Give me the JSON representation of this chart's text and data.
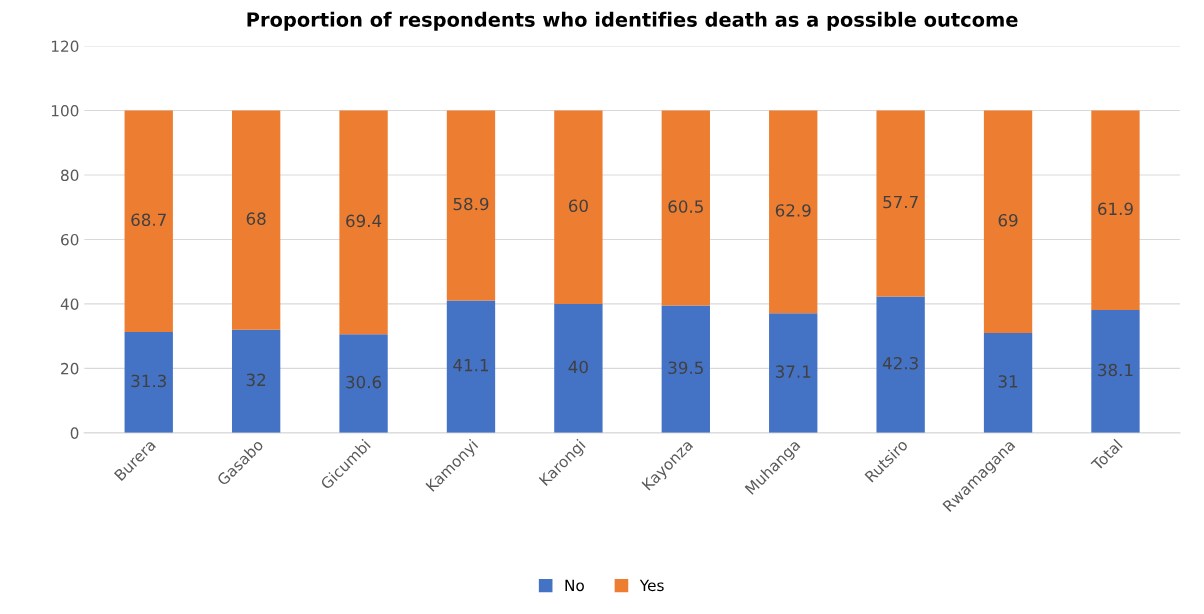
{
  "chart_data": {
    "type": "bar",
    "stacked": true,
    "title": "Proportion of respondents who identifies death as a possible outcome",
    "categories": [
      "Burera",
      "Gasabo",
      "Gicumbi",
      "Kamonyi",
      "Karongi",
      "Kayonza",
      "Muhanga",
      "Rutsiro",
      "Rwamagana",
      "Total"
    ],
    "series": [
      {
        "name": "No",
        "color": "#4472c4",
        "values": [
          31.3,
          32,
          30.6,
          41.1,
          40,
          39.5,
          37.1,
          42.3,
          31,
          38.1
        ]
      },
      {
        "name": "Yes",
        "color": "#ed7d31",
        "values": [
          68.7,
          68,
          69.4,
          58.9,
          60,
          60.5,
          62.9,
          57.7,
          69,
          61.9
        ]
      }
    ],
    "ylim": [
      0,
      120
    ],
    "yticks": [
      0,
      20,
      40,
      60,
      80,
      100,
      120
    ],
    "grid": "y",
    "legend": "bottom",
    "data_labels": true
  }
}
